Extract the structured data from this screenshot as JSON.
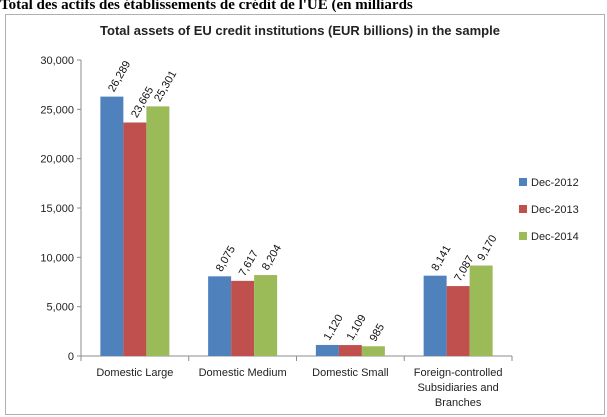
{
  "document_title": "Total des actifs des établissements de crédit de l'UE (en milliards",
  "chart_data": {
    "type": "bar",
    "title": "Total assets of EU credit institutions (EUR billions) in the sample",
    "categories": [
      [
        "Domestic Large"
      ],
      [
        "Domestic Medium"
      ],
      [
        "Domestic Small"
      ],
      [
        "Foreign-controlled",
        "Subsidiaries and",
        "Branches"
      ]
    ],
    "series": [
      {
        "name": "Dec-2012",
        "color": "#4f81bd",
        "values": [
          26289,
          8075,
          1120,
          8141
        ],
        "labels": [
          "26,289",
          "8,075",
          "1,120",
          "8,141"
        ]
      },
      {
        "name": "Dec-2013",
        "color": "#c0504d",
        "values": [
          23665,
          7617,
          1109,
          7087
        ],
        "labels": [
          "23,665",
          "7,617",
          "1,109",
          "7,087"
        ]
      },
      {
        "name": "Dec-2014",
        "color": "#9bbb59",
        "values": [
          25301,
          8204,
          985,
          9170
        ],
        "labels": [
          "25,301",
          "8,204",
          "985",
          "9,170"
        ]
      }
    ],
    "ylim": [
      0,
      30000
    ],
    "yticks": [
      0,
      5000,
      10000,
      15000,
      20000,
      25000,
      30000
    ],
    "ytick_labels": [
      "0",
      "5,000",
      "10,000",
      "15,000",
      "20,000",
      "25,000",
      "30,000"
    ],
    "xlabel": "",
    "ylabel": "",
    "grid": false,
    "legend_position": "right"
  }
}
